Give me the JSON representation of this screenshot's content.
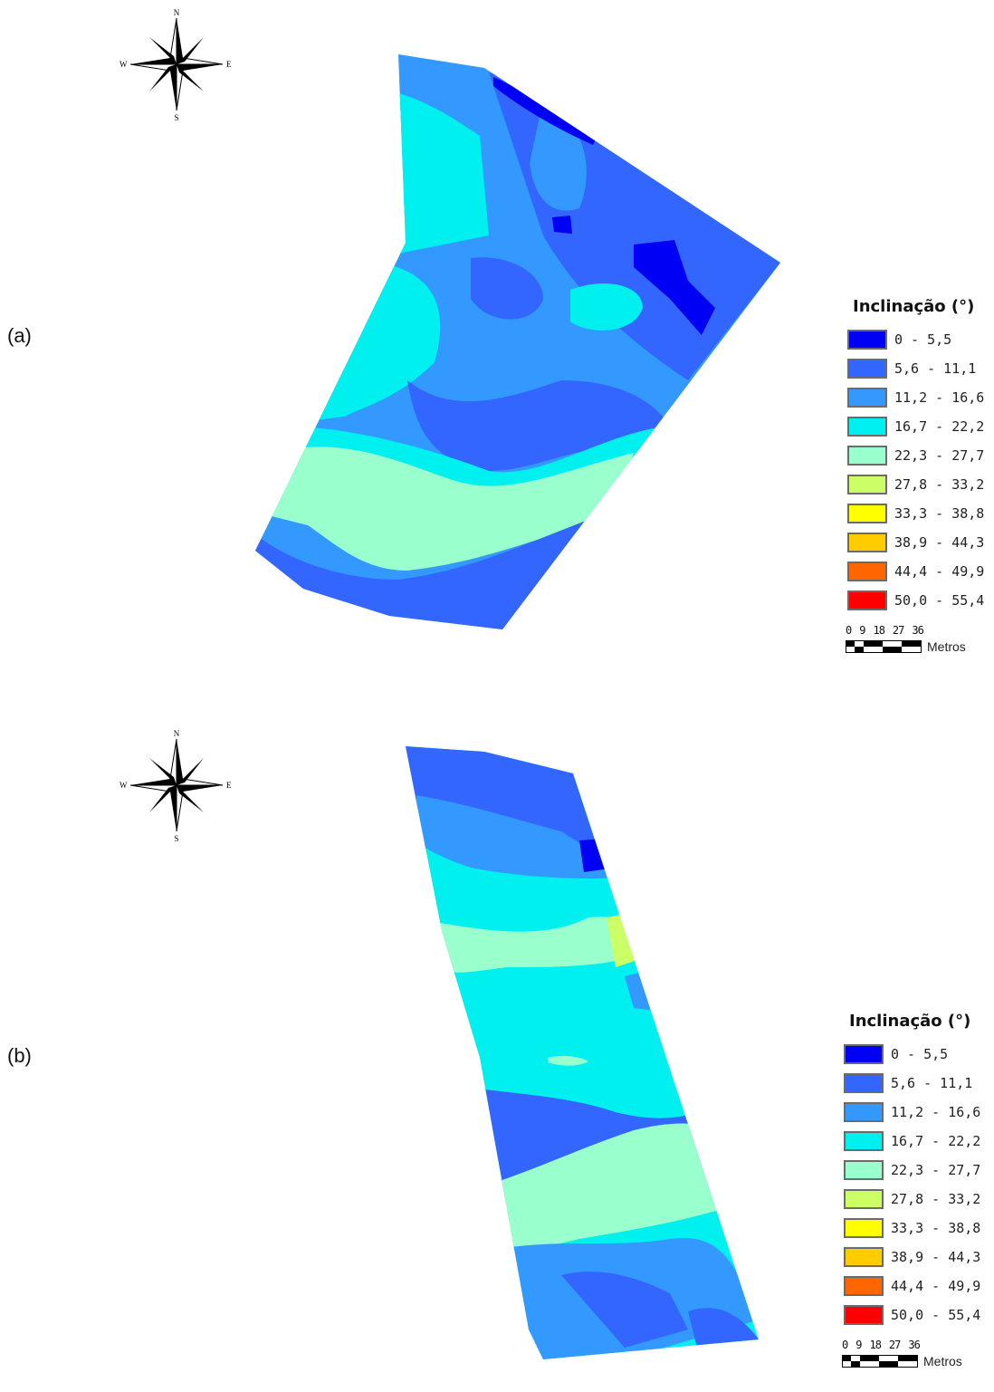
{
  "legend": {
    "title": "Inclinação (°)",
    "classes": [
      {
        "label": "0 - 5,5",
        "color": "#0000f5"
      },
      {
        "label": "5,6 - 11,1",
        "color": "#3366ff"
      },
      {
        "label": "11,2 - 16,6",
        "color": "#3399ff"
      },
      {
        "label": "16,7 - 22,2",
        "color": "#00f0f0"
      },
      {
        "label": "22,3 - 27,7",
        "color": "#99ffcc"
      },
      {
        "label": "27,8 - 33,2",
        "color": "#ccff66"
      },
      {
        "label": "33,3 - 38,8",
        "color": "#ffff00"
      },
      {
        "label": "38,9 - 44,3",
        "color": "#ffcc00"
      },
      {
        "label": "44,4 - 49,9",
        "color": "#ff6600"
      },
      {
        "label": "50,0 - 55,4",
        "color": "#ff0000"
      }
    ]
  },
  "scale_bar": {
    "ticks": [
      "0",
      "9",
      "18",
      "27",
      "36"
    ],
    "unit": "Metros"
  },
  "compass": {
    "n": "N",
    "s": "S",
    "e": "E",
    "w": "W"
  },
  "panels": [
    {
      "label": "(a)"
    },
    {
      "label": "(b)"
    }
  ]
}
